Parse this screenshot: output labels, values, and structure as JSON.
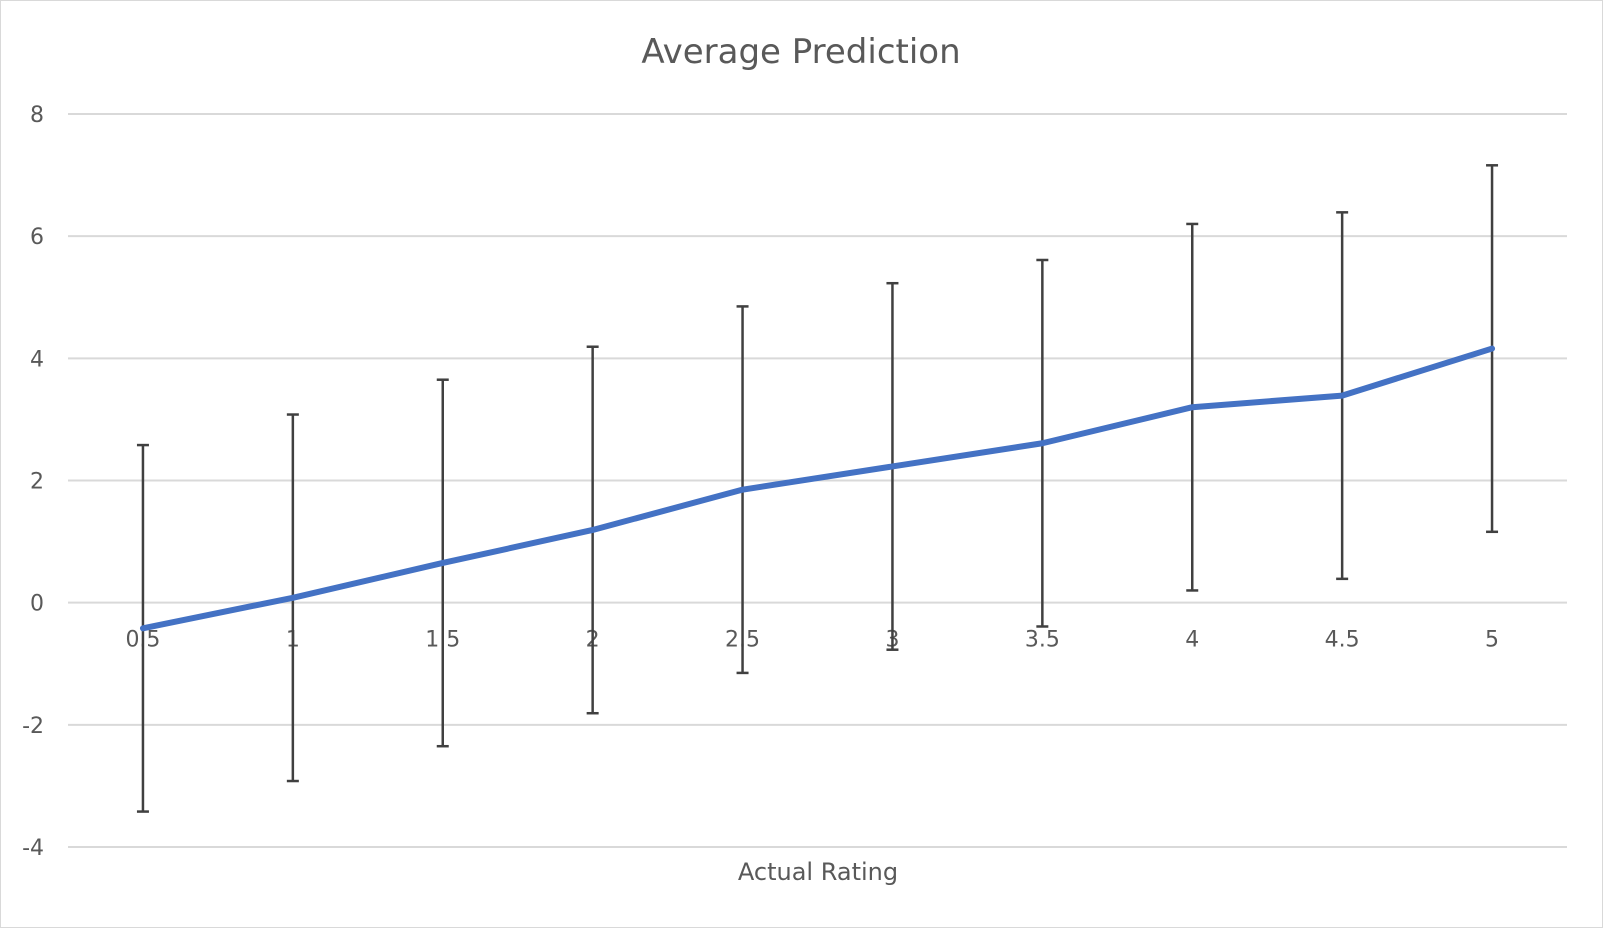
{
  "chart_data": {
    "type": "line",
    "title": "Average Prediction",
    "xlabel": "Actual Rating",
    "ylabel": "",
    "ylim": [
      -4,
      8
    ],
    "yticks": [
      -4,
      -2,
      0,
      2,
      4,
      6,
      8
    ],
    "grid": true,
    "legend": "none",
    "categories": [
      "0.5",
      "1",
      "1.5",
      "2",
      "2.5",
      "3",
      "3.5",
      "4",
      "4.5",
      "5"
    ],
    "series": [
      {
        "values": [
          -0.42,
          0.08,
          0.65,
          1.19,
          1.85,
          2.23,
          2.61,
          3.2,
          3.39,
          4.16
        ],
        "error_low": [
          -3.42,
          -2.92,
          -2.35,
          -1.81,
          -1.15,
          -0.77,
          -0.39,
          0.2,
          0.39,
          1.16
        ],
        "error_high": [
          2.58,
          3.08,
          3.65,
          4.19,
          4.85,
          5.23,
          5.61,
          6.2,
          6.39,
          7.16
        ],
        "color": "#4472c4"
      }
    ]
  }
}
